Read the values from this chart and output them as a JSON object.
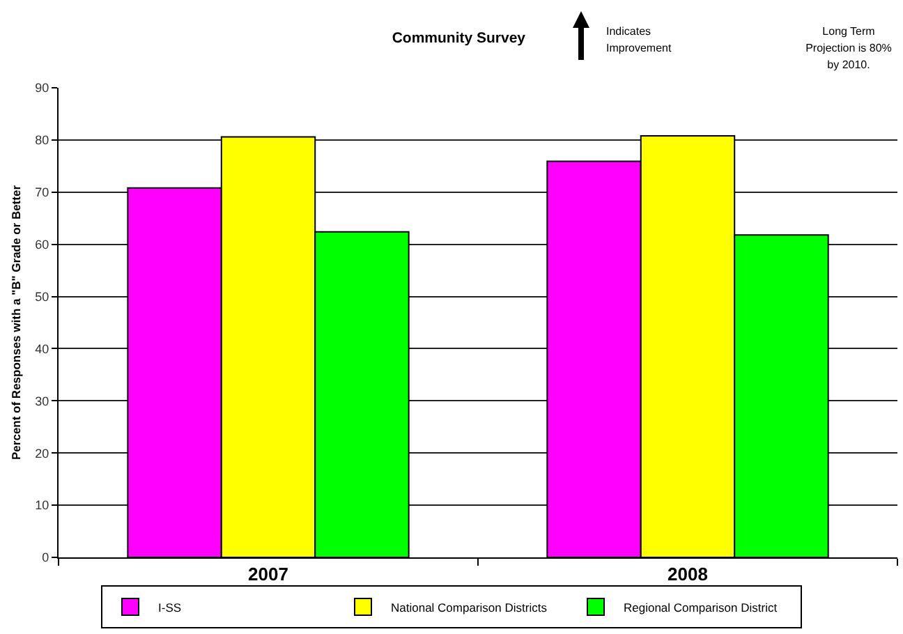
{
  "chart_data": {
    "type": "bar",
    "title": "Community Survey",
    "ylabel": "Percent of Responses with a \"B\" Grade or Better",
    "annotations": [
      "Indicates Improvement",
      "Long Term Projection is 80% by 2010."
    ],
    "categories": [
      "2007",
      "2008"
    ],
    "series": [
      {
        "name": "I-SS",
        "color": "#ff00ff",
        "values": [
          70.8,
          75.9
        ]
      },
      {
        "name": "National Comparison Districts",
        "color": "#ffff00",
        "values": [
          80.6,
          80.8
        ]
      },
      {
        "name": "Regional Comparison District",
        "color": "#00ff00",
        "values": [
          62.4,
          61.8
        ]
      }
    ],
    "ylim": [
      0,
      90
    ],
    "yticks": [
      0,
      10,
      20,
      30,
      40,
      50,
      60,
      70,
      80,
      90
    ],
    "grid": "y",
    "legend": "bottom"
  }
}
